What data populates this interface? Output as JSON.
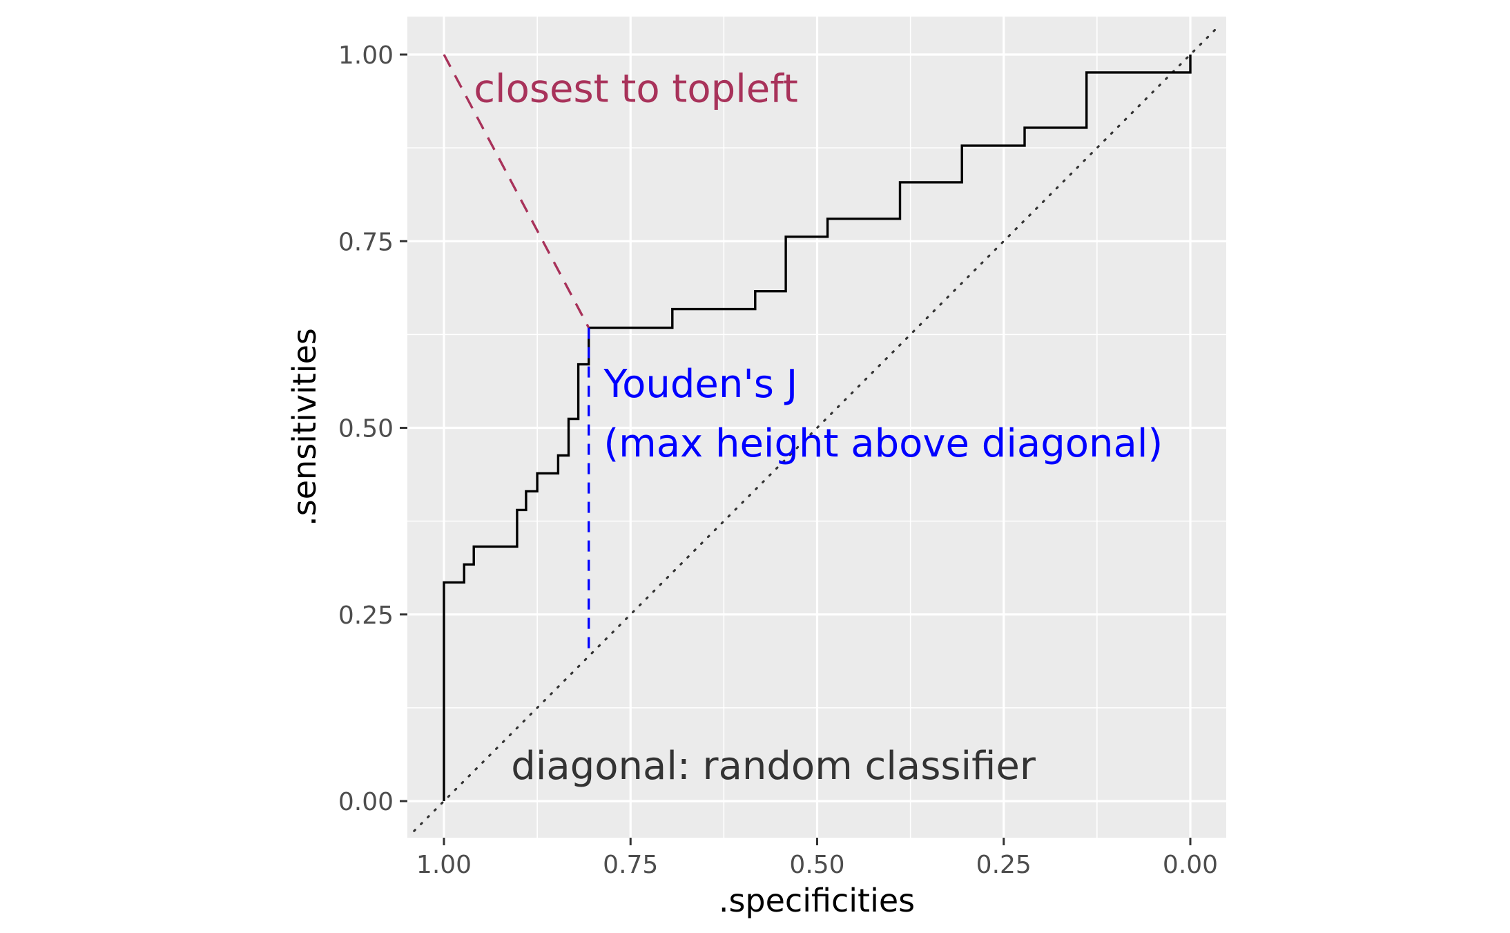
{
  "chart_data": {
    "type": "line",
    "xlabel": ".specificities",
    "ylabel": ".sensitivities",
    "xlim": [
      1.0,
      0.0
    ],
    "ylim": [
      0.0,
      1.0
    ],
    "x_reversed": true,
    "x_ticks": [
      "1.00",
      "0.75",
      "0.50",
      "0.25",
      "0.00"
    ],
    "x_tick_values": [
      1.0,
      0.75,
      0.5,
      0.25,
      0.0
    ],
    "y_ticks": [
      "0.00",
      "0.25",
      "0.50",
      "0.75",
      "1.00"
    ],
    "y_tick_values": [
      0.0,
      0.25,
      0.5,
      0.75,
      1.0
    ],
    "grid": true,
    "panel_background": "#ebebeb",
    "roc_curve": {
      "color": "#000000",
      "points": [
        [
          1.0,
          0.0
        ],
        [
          1.0,
          0.293
        ],
        [
          0.973,
          0.293
        ],
        [
          0.973,
          0.317
        ],
        [
          0.96,
          0.317
        ],
        [
          0.96,
          0.341
        ],
        [
          0.902,
          0.341
        ],
        [
          0.902,
          0.39
        ],
        [
          0.89,
          0.39
        ],
        [
          0.89,
          0.415
        ],
        [
          0.875,
          0.415
        ],
        [
          0.875,
          0.439
        ],
        [
          0.847,
          0.439
        ],
        [
          0.847,
          0.463
        ],
        [
          0.833,
          0.463
        ],
        [
          0.833,
          0.512
        ],
        [
          0.82,
          0.512
        ],
        [
          0.82,
          0.585
        ],
        [
          0.806,
          0.585
        ],
        [
          0.806,
          0.634
        ],
        [
          0.694,
          0.634
        ],
        [
          0.694,
          0.659
        ],
        [
          0.583,
          0.659
        ],
        [
          0.583,
          0.683
        ],
        [
          0.542,
          0.683
        ],
        [
          0.542,
          0.756
        ],
        [
          0.486,
          0.756
        ],
        [
          0.486,
          0.78
        ],
        [
          0.389,
          0.78
        ],
        [
          0.389,
          0.829
        ],
        [
          0.306,
          0.829
        ],
        [
          0.306,
          0.878
        ],
        [
          0.222,
          0.878
        ],
        [
          0.222,
          0.902
        ],
        [
          0.139,
          0.902
        ],
        [
          0.139,
          0.976
        ],
        [
          0.0,
          0.976
        ],
        [
          0.0,
          1.0
        ]
      ]
    },
    "diagonal": {
      "color": "#333333",
      "points": [
        [
          1.04,
          -0.04
        ],
        [
          -0.04,
          1.04
        ]
      ]
    },
    "youden_segment": {
      "color": "#0000ff",
      "points": [
        [
          0.806,
          0.634
        ],
        [
          0.806,
          0.194
        ]
      ]
    },
    "topleft_segment": {
      "color": "#a8325a",
      "points": [
        [
          1.0,
          1.0
        ],
        [
          0.806,
          0.634
        ]
      ]
    },
    "annotations": [
      {
        "id": "topleft",
        "lines": [
          "closest to topleft"
        ],
        "x": 0.96,
        "y": 0.955,
        "color": "#a8325a"
      },
      {
        "id": "youden",
        "lines": [
          "Youden's J",
          "(max height above diagonal)"
        ],
        "x": 0.786,
        "y": 0.52,
        "color": "#0000ff"
      },
      {
        "id": "random",
        "lines": [
          "diagonal: random classifier"
        ],
        "x": 0.91,
        "y": 0.048,
        "color": "#333333"
      }
    ]
  }
}
